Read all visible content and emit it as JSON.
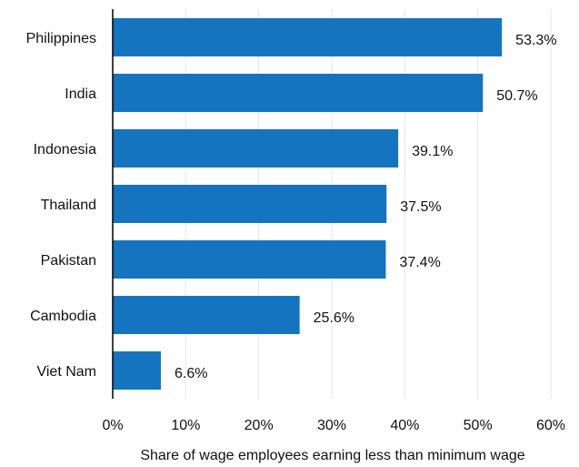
{
  "chart_data": {
    "type": "bar",
    "orientation": "horizontal",
    "categories": [
      "Philippines",
      "India",
      "Indonesia",
      "Thailand",
      "Pakistan",
      "Cambodia",
      "Viet Nam"
    ],
    "values": [
      53.3,
      50.7,
      39.1,
      37.5,
      37.4,
      25.6,
      6.6
    ],
    "data_labels": [
      "53.3%",
      "50.7%",
      "39.1%",
      "37.5%",
      "37.4%",
      "25.6%",
      "6.6%"
    ],
    "title": "",
    "xlabel": "Share of wage employees earning less than minimum wage",
    "ylabel": "",
    "xlim": [
      0,
      60
    ],
    "xticks": [
      0,
      10,
      20,
      30,
      40,
      50,
      60
    ],
    "xtick_labels": [
      "0%",
      "10%",
      "20%",
      "30%",
      "40%",
      "50%",
      "60%"
    ],
    "grid": "vertical",
    "bar_color": "#1574bf",
    "legend": "none"
  }
}
